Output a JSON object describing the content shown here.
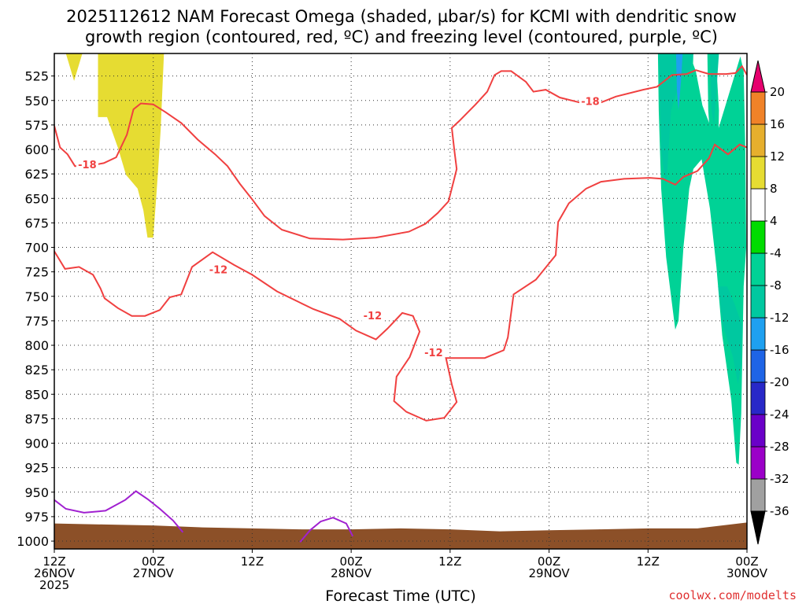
{
  "chart_data": {
    "type": "heatmap",
    "title_lines": [
      "2025112612 NAM Forecast Omega (shaded, µbar/s) for KCMI with dendritic snow",
      "growth region (contoured, red, ºC) and freezing level (contoured, purple, ºC)"
    ],
    "xlabel": "Forecast Time (UTC)",
    "credit": "coolwx.com/modelts",
    "x_ticks": [
      {
        "h": 0,
        "line1": "12Z",
        "line2": "26NOV",
        "line3": "2025"
      },
      {
        "h": 12,
        "line1": "00Z",
        "line2": "27NOV",
        "line3": ""
      },
      {
        "h": 24,
        "line1": "12Z",
        "line2": "",
        "line3": ""
      },
      {
        "h": 36,
        "line1": "00Z",
        "line2": "28NOV",
        "line3": ""
      },
      {
        "h": 48,
        "line1": "12Z",
        "line2": "",
        "line3": ""
      },
      {
        "h": 60,
        "line1": "00Z",
        "line2": "29NOV",
        "line3": ""
      },
      {
        "h": 72,
        "line1": "12Z",
        "line2": "",
        "line3": ""
      },
      {
        "h": 84,
        "line1": "00Z",
        "line2": "30NOV",
        "line3": ""
      }
    ],
    "xlim_hours": [
      0,
      84
    ],
    "y_ticks": [
      525,
      550,
      575,
      600,
      625,
      650,
      675,
      700,
      725,
      750,
      775,
      800,
      825,
      850,
      875,
      900,
      925,
      950,
      975,
      1000
    ],
    "ylim_hpa": [
      1008,
      502
    ],
    "grid": true,
    "colorbar": {
      "levels": [
        -36,
        -32,
        -28,
        -24,
        -20,
        -16,
        -12,
        -8,
        -4,
        4,
        8,
        12,
        16,
        20
      ],
      "labels": [
        "-36",
        "-32",
        "-28",
        "-24",
        "-20",
        "-16",
        "-12",
        "-8",
        "-4",
        "4",
        "8",
        "12",
        "16",
        "20"
      ],
      "colors": [
        "#a0a0a0",
        "#9b00c8",
        "#6a00c8",
        "#2828c8",
        "#1e64e6",
        "#1ea0f0",
        "#00c8a0",
        "#00d296",
        "#00dc00",
        "#ffffff",
        "#e6dc32",
        "#e6af2d",
        "#f08228",
        "#fa3c3c"
      ],
      "arrow_low_color": "#000000",
      "arrow_high_color": "#e6006e"
    },
    "contour_labels": {
      "dgz_upper": "-18",
      "dgz_upper_2": "-18",
      "dgz_lower": "-12",
      "dgz_lower_2": "-12",
      "dgz_lower_3": "-12"
    },
    "dgz_upper_color": "#f04040",
    "freezing_color": "#a020d0",
    "terrain_color": "#8c5028",
    "dgz_upper_contour": [
      [
        0,
        576
      ],
      [
        0.7,
        598
      ],
      [
        1.6,
        605
      ],
      [
        2.5,
        617
      ],
      [
        4,
        617
      ],
      [
        6,
        614
      ],
      [
        7.5,
        608
      ],
      [
        8.8,
        585
      ],
      [
        9.6,
        559
      ],
      [
        10.5,
        553
      ],
      [
        12,
        554
      ],
      [
        13.5,
        562
      ],
      [
        15.4,
        573
      ],
      [
        17.4,
        590
      ],
      [
        19.5,
        605
      ],
      [
        21,
        617
      ],
      [
        22.5,
        635
      ],
      [
        24,
        651
      ],
      [
        25.5,
        668
      ],
      [
        27.6,
        682
      ],
      [
        31,
        691
      ],
      [
        35,
        692
      ],
      [
        39,
        690
      ],
      [
        43,
        684
      ],
      [
        45,
        676
      ],
      [
        46.5,
        665
      ],
      [
        47.8,
        653
      ],
      [
        48.5,
        630
      ],
      [
        48.8,
        620
      ],
      [
        48.5,
        600
      ],
      [
        48.2,
        578
      ],
      [
        49.1,
        571
      ],
      [
        51.1,
        554
      ],
      [
        52.5,
        541
      ],
      [
        53.4,
        524
      ],
      [
        54.2,
        520
      ],
      [
        55.4,
        520
      ],
      [
        57.2,
        531
      ],
      [
        58.1,
        541
      ],
      [
        59.6,
        539
      ],
      [
        61.3,
        547
      ],
      [
        63.7,
        552
      ],
      [
        66.3,
        552
      ],
      [
        68.1,
        546
      ],
      [
        71.4,
        539
      ],
      [
        73.1,
        536
      ],
      [
        74.9,
        524
      ],
      [
        76.7,
        523
      ],
      [
        77.8,
        519
      ],
      [
        79.4,
        523
      ],
      [
        81.5,
        523
      ],
      [
        82.6,
        522
      ],
      [
        83.4,
        515
      ],
      [
        84,
        524
      ]
    ],
    "dgz_lower_contour": [
      [
        0,
        704
      ],
      [
        1.3,
        722
      ],
      [
        3,
        720
      ],
      [
        4.7,
        728
      ],
      [
        5.6,
        742
      ],
      [
        6.1,
        752
      ],
      [
        7.7,
        762
      ],
      [
        9.4,
        770
      ],
      [
        11,
        770
      ],
      [
        12.8,
        764
      ],
      [
        14,
        751
      ],
      [
        15.4,
        748
      ],
      [
        16.7,
        720
      ],
      [
        19.2,
        705
      ],
      [
        21.8,
        718
      ],
      [
        24,
        728
      ],
      [
        27,
        745
      ],
      [
        31.4,
        763
      ],
      [
        34.6,
        773
      ],
      [
        36.6,
        785
      ],
      [
        39,
        794
      ],
      [
        40.4,
        783
      ],
      [
        42.2,
        767
      ],
      [
        43.5,
        770
      ],
      [
        44.3,
        786
      ],
      [
        43.1,
        812
      ],
      [
        41.5,
        832
      ],
      [
        41.2,
        857
      ],
      [
        42.7,
        868
      ],
      [
        45.1,
        877
      ],
      [
        47.3,
        874
      ],
      [
        48.8,
        858
      ],
      [
        48.2,
        840
      ],
      [
        47.5,
        813
      ],
      [
        49.9,
        813
      ],
      [
        52.2,
        813
      ],
      [
        54.5,
        805
      ],
      [
        55,
        792
      ],
      [
        55.7,
        748
      ],
      [
        58.4,
        733
      ],
      [
        60.8,
        708
      ],
      [
        61.1,
        674
      ],
      [
        62.4,
        655
      ],
      [
        64.5,
        640
      ],
      [
        66.3,
        633
      ],
      [
        69.1,
        630
      ],
      [
        72.2,
        629
      ],
      [
        73.8,
        630
      ],
      [
        75.3,
        636
      ],
      [
        76.3,
        628
      ],
      [
        78,
        622
      ],
      [
        79.4,
        609
      ],
      [
        80.1,
        595
      ],
      [
        81.7,
        605
      ],
      [
        83.1,
        595
      ],
      [
        84,
        598
      ]
    ],
    "freezing_contour_1": [
      [
        0,
        958
      ],
      [
        1.4,
        967
      ],
      [
        3.6,
        971
      ],
      [
        6.2,
        969
      ],
      [
        8.6,
        958
      ],
      [
        9.9,
        949
      ],
      [
        11.3,
        957
      ],
      [
        12.8,
        967
      ],
      [
        14.4,
        979
      ],
      [
        15.6,
        991
      ]
    ],
    "freezing_contour_2": [
      [
        29.8,
        1001
      ],
      [
        31,
        989
      ],
      [
        32.3,
        980
      ],
      [
        33.8,
        976
      ],
      [
        35.4,
        982
      ],
      [
        36.2,
        995
      ]
    ],
    "surface_pressure": [
      [
        0,
        982
      ],
      [
        6,
        983
      ],
      [
        12,
        984
      ],
      [
        18,
        986
      ],
      [
        24,
        987
      ],
      [
        30,
        988
      ],
      [
        36,
        988
      ],
      [
        42,
        987
      ],
      [
        48,
        988
      ],
      [
        54,
        990
      ],
      [
        60,
        989
      ],
      [
        66,
        988
      ],
      [
        72,
        987
      ],
      [
        78,
        987
      ],
      [
        82,
        983
      ],
      [
        84,
        981
      ]
    ],
    "omega_polygons": [
      {
        "value": 8,
        "points": [
          [
            1.4,
            502
          ],
          [
            2.4,
            530
          ],
          [
            3.4,
            502
          ]
        ]
      },
      {
        "value": 8,
        "points": [
          [
            5.3,
            502
          ],
          [
            5.3,
            567
          ],
          [
            6.4,
            567
          ],
          [
            7.7,
            598
          ],
          [
            8.7,
            626
          ],
          [
            10.1,
            640
          ],
          [
            10.8,
            662
          ],
          [
            11.3,
            690
          ],
          [
            12,
            690
          ],
          [
            12.3,
            655
          ],
          [
            12.6,
            620
          ],
          [
            12.9,
            580
          ],
          [
            13.3,
            502
          ]
        ]
      },
      {
        "value": -6,
        "points": [
          [
            73.2,
            502
          ],
          [
            73.3,
            560
          ],
          [
            73.6,
            640
          ],
          [
            74.2,
            710
          ],
          [
            75.3,
            784
          ],
          [
            75.7,
            775
          ],
          [
            76.3,
            700
          ],
          [
            77,
            640
          ],
          [
            77.5,
            620
          ],
          [
            78.5,
            610
          ],
          [
            79.5,
            660
          ],
          [
            80.3,
            720
          ],
          [
            81,
            790
          ],
          [
            81.5,
            820
          ],
          [
            82.1,
            856
          ],
          [
            82.7,
            920
          ],
          [
            83,
            922
          ],
          [
            83.3,
            870
          ],
          [
            83.6,
            740
          ],
          [
            83.9,
            700
          ],
          [
            83.8,
            600
          ],
          [
            83.6,
            520
          ],
          [
            83.2,
            505
          ],
          [
            80.5,
            580
          ],
          [
            79.5,
            575
          ],
          [
            78.6,
            555
          ],
          [
            77.8,
            520
          ],
          [
            77,
            502
          ]
        ]
      },
      {
        "value": -6,
        "points": [
          [
            76.3,
            502
          ],
          [
            76.5,
            560
          ],
          [
            76.8,
            575
          ],
          [
            77.3,
            560
          ],
          [
            77.5,
            502
          ]
        ]
      },
      {
        "value": -6,
        "points": [
          [
            79.2,
            502
          ],
          [
            79.3,
            560
          ],
          [
            79.7,
            610
          ],
          [
            80.4,
            650
          ],
          [
            80.6,
            560
          ],
          [
            80.2,
            502
          ]
        ]
      },
      {
        "value": -10,
        "points": [
          [
            73.3,
            502
          ],
          [
            73.6,
            600
          ],
          [
            74.2,
            640
          ],
          [
            74.8,
            560
          ],
          [
            76.1,
            525
          ],
          [
            77.1,
            520
          ],
          [
            77.5,
            502
          ]
        ]
      },
      {
        "value": -10,
        "points": [
          [
            80.5,
            740
          ],
          [
            81.1,
            780
          ],
          [
            82.3,
            812
          ],
          [
            82.9,
            840
          ],
          [
            83.3,
            820
          ],
          [
            83.4,
            780
          ],
          [
            82.6,
            760
          ],
          [
            81.6,
            740
          ]
        ]
      },
      {
        "value": -10,
        "points": [
          [
            79.5,
            502
          ],
          [
            79.7,
            560
          ],
          [
            80,
            575
          ],
          [
            80.3,
            540
          ],
          [
            80.6,
            502
          ]
        ]
      },
      {
        "value": -14,
        "points": [
          [
            75.4,
            502
          ],
          [
            75.5,
            540
          ],
          [
            75.7,
            560
          ],
          [
            76,
            530
          ],
          [
            76.2,
            502
          ]
        ]
      }
    ]
  }
}
